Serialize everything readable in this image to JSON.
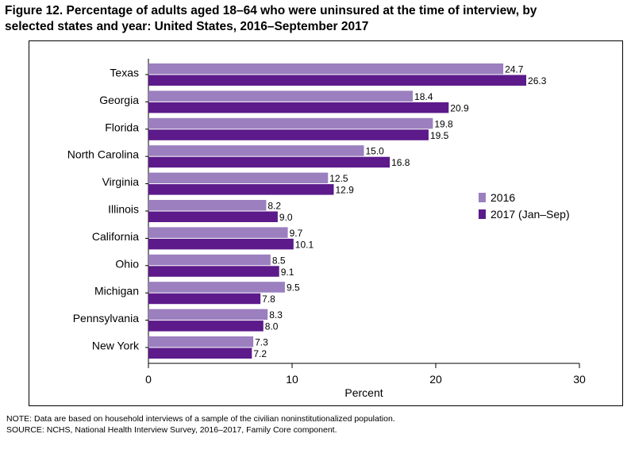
{
  "title_line1": "Figure 12. Percentage of adults aged 18–64 who were uninsured at the time of interview, by",
  "title_line2": "selected states and year: United States, 2016–September 2017",
  "note": "NOTE: Data are based on household interviews of a sample of the civilian noninstitutionalized population.",
  "source": "SOURCE: NCHS, National Health Interview Survey, 2016–2017, Family Core component.",
  "chart_data": {
    "type": "bar",
    "orientation": "horizontal",
    "categories": [
      "Texas",
      "Georgia",
      "Florida",
      "North Carolina",
      "Virginia",
      "Illinois",
      "California",
      "Ohio",
      "Michigan",
      "Pennsylvania",
      "New York"
    ],
    "series": [
      {
        "name": "2016",
        "color": "#9b7fbf",
        "values": [
          24.7,
          18.4,
          19.8,
          15.0,
          12.5,
          8.2,
          9.7,
          8.5,
          9.5,
          8.3,
          7.3
        ]
      },
      {
        "name": "2017 (Jan–Sep)",
        "color": "#5c1a8a",
        "values": [
          26.3,
          20.9,
          19.5,
          16.8,
          12.9,
          9.0,
          10.1,
          9.1,
          7.8,
          8.0,
          7.2
        ]
      }
    ],
    "xlabel": "Percent",
    "xlim": [
      0,
      30
    ],
    "xticks": [
      0,
      10,
      20,
      30
    ],
    "legend_position": "right",
    "grid": false
  }
}
